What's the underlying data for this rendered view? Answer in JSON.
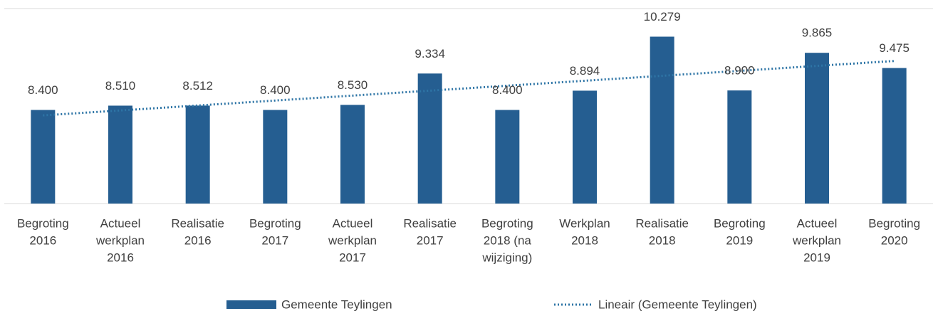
{
  "chart_data": {
    "type": "bar",
    "categories": [
      [
        "Begroting",
        "2016"
      ],
      [
        "Actueel",
        "werkplan",
        "2016"
      ],
      [
        "Realisatie",
        "2016"
      ],
      [
        "Begroting",
        "2017"
      ],
      [
        "Actueel",
        "werkplan",
        "2017"
      ],
      [
        "Realisatie",
        "2017"
      ],
      [
        "Begroting",
        "2018 (na",
        "wijziging)"
      ],
      [
        "Werkplan",
        "2018"
      ],
      [
        "Realisatie",
        "2018"
      ],
      [
        "Begroting",
        "2019"
      ],
      [
        "Actueel",
        "werkplan",
        "2019"
      ],
      [
        "Begroting",
        "2020"
      ]
    ],
    "series": [
      {
        "name": "Gemeente Teylingen",
        "color": "#255e91",
        "values": [
          8400,
          8510,
          8512,
          8400,
          8530,
          9334,
          8400,
          8894,
          10279,
          8900,
          9865,
          9475
        ],
        "value_labels": [
          "8.400",
          "8.510",
          "8.512",
          "8.400",
          "8.530",
          "9.334",
          "8.400",
          "8.894",
          "10.279",
          "8.900",
          "9.865",
          "9.475"
        ]
      }
    ],
    "trendline": {
      "name": "Lineair (Gemeente Teylingen)",
      "color": "#2e75a6"
    },
    "ylim": [
      6000,
      11000
    ]
  }
}
